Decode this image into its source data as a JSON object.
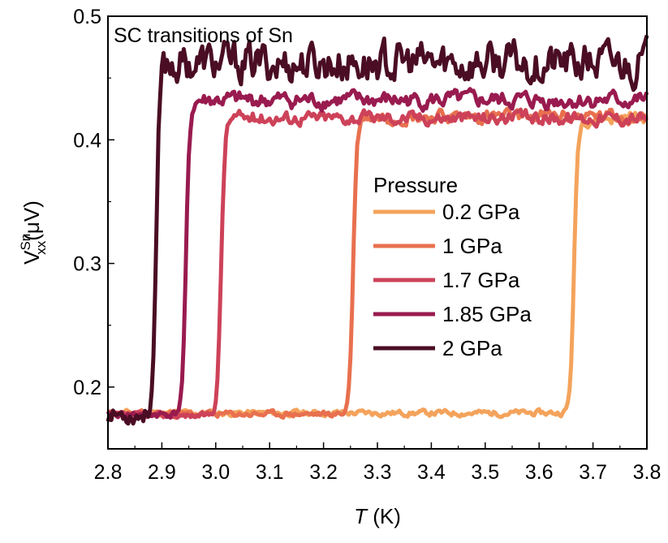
{
  "chart_data": {
    "type": "line",
    "annotation": "SC transitions of Sn",
    "xlabel_var": "T",
    "xlabel_unit": " (K)",
    "ylabel_base": "V",
    "ylabel_sup": "Sn",
    "ylabel_sub": "xx",
    "ylabel_unit": "(μV)",
    "xlim": [
      2.8,
      3.8
    ],
    "ylim": [
      0.15,
      0.5
    ],
    "x_ticks": [
      "2.8",
      "2.9",
      "3.0",
      "3.1",
      "3.2",
      "3.3",
      "3.4",
      "3.5",
      "3.6",
      "3.7",
      "3.8"
    ],
    "y_ticks": [
      "0.2",
      "0.3",
      "0.4",
      "0.5"
    ],
    "legend_title": "Pressure",
    "legend_position": "right",
    "series": [
      {
        "name": "0.2 GPa",
        "color": "#f4a35c",
        "tc": 3.665,
        "low": 0.179,
        "high": 0.418,
        "noise": 0.004,
        "seed": 11
      },
      {
        "name": "1 GPa",
        "color": "#e8704f",
        "tc": 3.255,
        "low": 0.178,
        "high": 0.419,
        "noise": 0.004,
        "seed": 23
      },
      {
        "name": "1.7 GPa",
        "color": "#cd4259",
        "tc": 3.01,
        "low": 0.177,
        "high": 0.418,
        "noise": 0.004,
        "seed": 37
      },
      {
        "name": "1.85 GPa",
        "color": "#991b4f",
        "tc": 2.945,
        "low": 0.178,
        "high": 0.432,
        "noise": 0.005,
        "seed": 41
      },
      {
        "name": "2 GPa",
        "color": "#4a0d24",
        "tc": 2.89,
        "low": 0.178,
        "high": 0.462,
        "noise": 0.012,
        "seed": 53
      }
    ]
  }
}
